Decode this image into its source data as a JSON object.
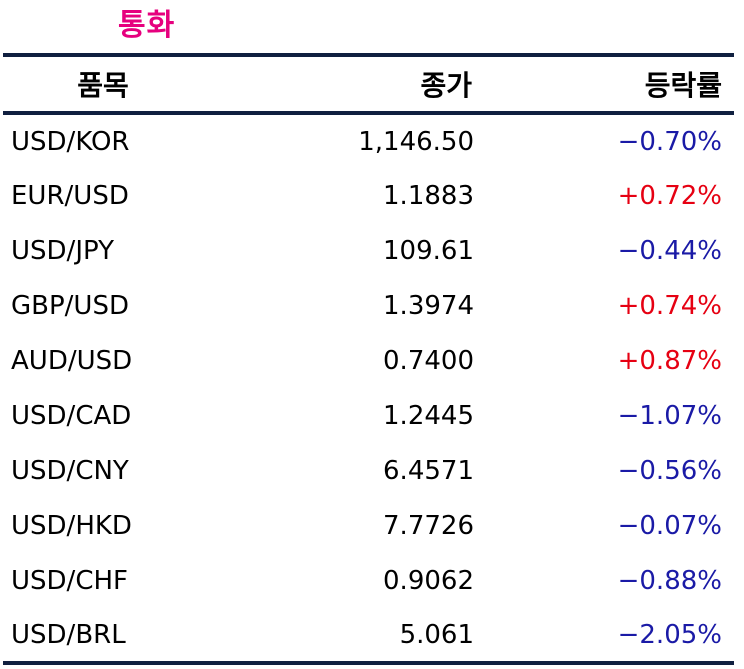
{
  "section_title": "통화",
  "table": {
    "headers": {
      "name": "품목",
      "close": "종가",
      "change": "등락률"
    },
    "rows": [
      {
        "name": "USD/KOR",
        "close": "1,146.50",
        "change": "−0.70%",
        "direction": "down"
      },
      {
        "name": "EUR/USD",
        "close": "1.1883",
        "change": "+0.72%",
        "direction": "up"
      },
      {
        "name": "USD/JPY",
        "close": "109.61",
        "change": "−0.44%",
        "direction": "down"
      },
      {
        "name": "GBP/USD",
        "close": "1.3974",
        "change": "+0.74%",
        "direction": "up"
      },
      {
        "name": "AUD/USD",
        "close": "0.7400",
        "change": "+0.87%",
        "direction": "up"
      },
      {
        "name": "USD/CAD",
        "close": "1.2445",
        "change": "−1.07%",
        "direction": "down"
      },
      {
        "name": "USD/CNY",
        "close": "6.4571",
        "change": "−0.56%",
        "direction": "down"
      },
      {
        "name": "USD/HKD",
        "close": "7.7726",
        "change": "−0.07%",
        "direction": "down"
      },
      {
        "name": "USD/CHF",
        "close": "0.9062",
        "change": "−0.88%",
        "direction": "down"
      },
      {
        "name": "USD/BRL",
        "close": "5.061",
        "change": "−2.05%",
        "direction": "down"
      }
    ]
  },
  "colors": {
    "title": "#e6007e",
    "rule": "#102040",
    "up": "#e60012",
    "down": "#1a1aa6"
  }
}
